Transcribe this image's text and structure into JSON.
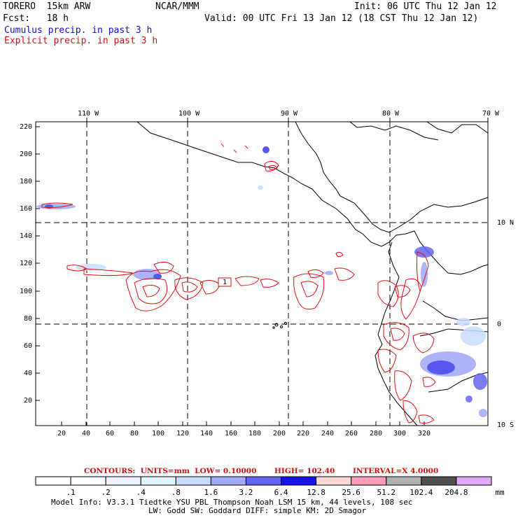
{
  "header": {
    "model": "TORERO  15km ARW",
    "org": "NCAR/MMM",
    "init": "Init: 06 UTC Thu 12 Jan 12",
    "fcst": "Fcst:   18 h",
    "valid": "Valid: 00 UTC Fri 13 Jan 12 (18 CST Thu 12 Jan 12)",
    "cumulus": "Cumulus precip. in past 3 h",
    "explicit": "Explicit precip. in past 3 h"
  },
  "axes": {
    "top_lon": [
      "110 W",
      "100 W",
      "90 W",
      "80 W",
      "70 W"
    ],
    "right_lat": [
      "10 N",
      "0",
      "10 S"
    ],
    "x_ticks": [
      "20",
      "40",
      "60",
      "80",
      "100",
      "120",
      "140",
      "160",
      "180",
      "200",
      "220",
      "240",
      "260",
      "280",
      "300",
      "320"
    ],
    "y_ticks": [
      "220",
      "200",
      "180",
      "160",
      "140",
      "120",
      "100",
      "80",
      "60",
      "40",
      "20"
    ]
  },
  "box_label": "1",
  "contours": {
    "label": "CONTOURS:",
    "units": "UNITS=mm",
    "low": "LOW= 0.10000",
    "high": "HIGH=  102.40",
    "interval": "INTERVAL=X  4.0000"
  },
  "colorbar": {
    "labels": [
      ".1",
      ".2",
      ".4",
      ".8",
      "1.6",
      "3.2",
      "6.4",
      "12.8",
      "25.6",
      "51.2",
      "102.4",
      "204.8"
    ],
    "unit": "mm",
    "colors": [
      "#ffffff",
      "#ffffff",
      "#eef4ff",
      "#dff6ff",
      "#c8dcff",
      "#a0a8f8",
      "#6464f0",
      "#1414e8",
      "#ffd8d8",
      "#ff9cb8",
      "#b0b0b0",
      "#505050",
      "#e0a8f8"
    ]
  },
  "footer": {
    "line1": "Model Info: V3.3.1   Tiedtke YSU PBL  Thompson    Noah LSM  15 km,   44 levels,  108 sec",
    "line2": "LW: Godd SW: Goddard DIFF: simple KM: 2D Smagor"
  }
}
